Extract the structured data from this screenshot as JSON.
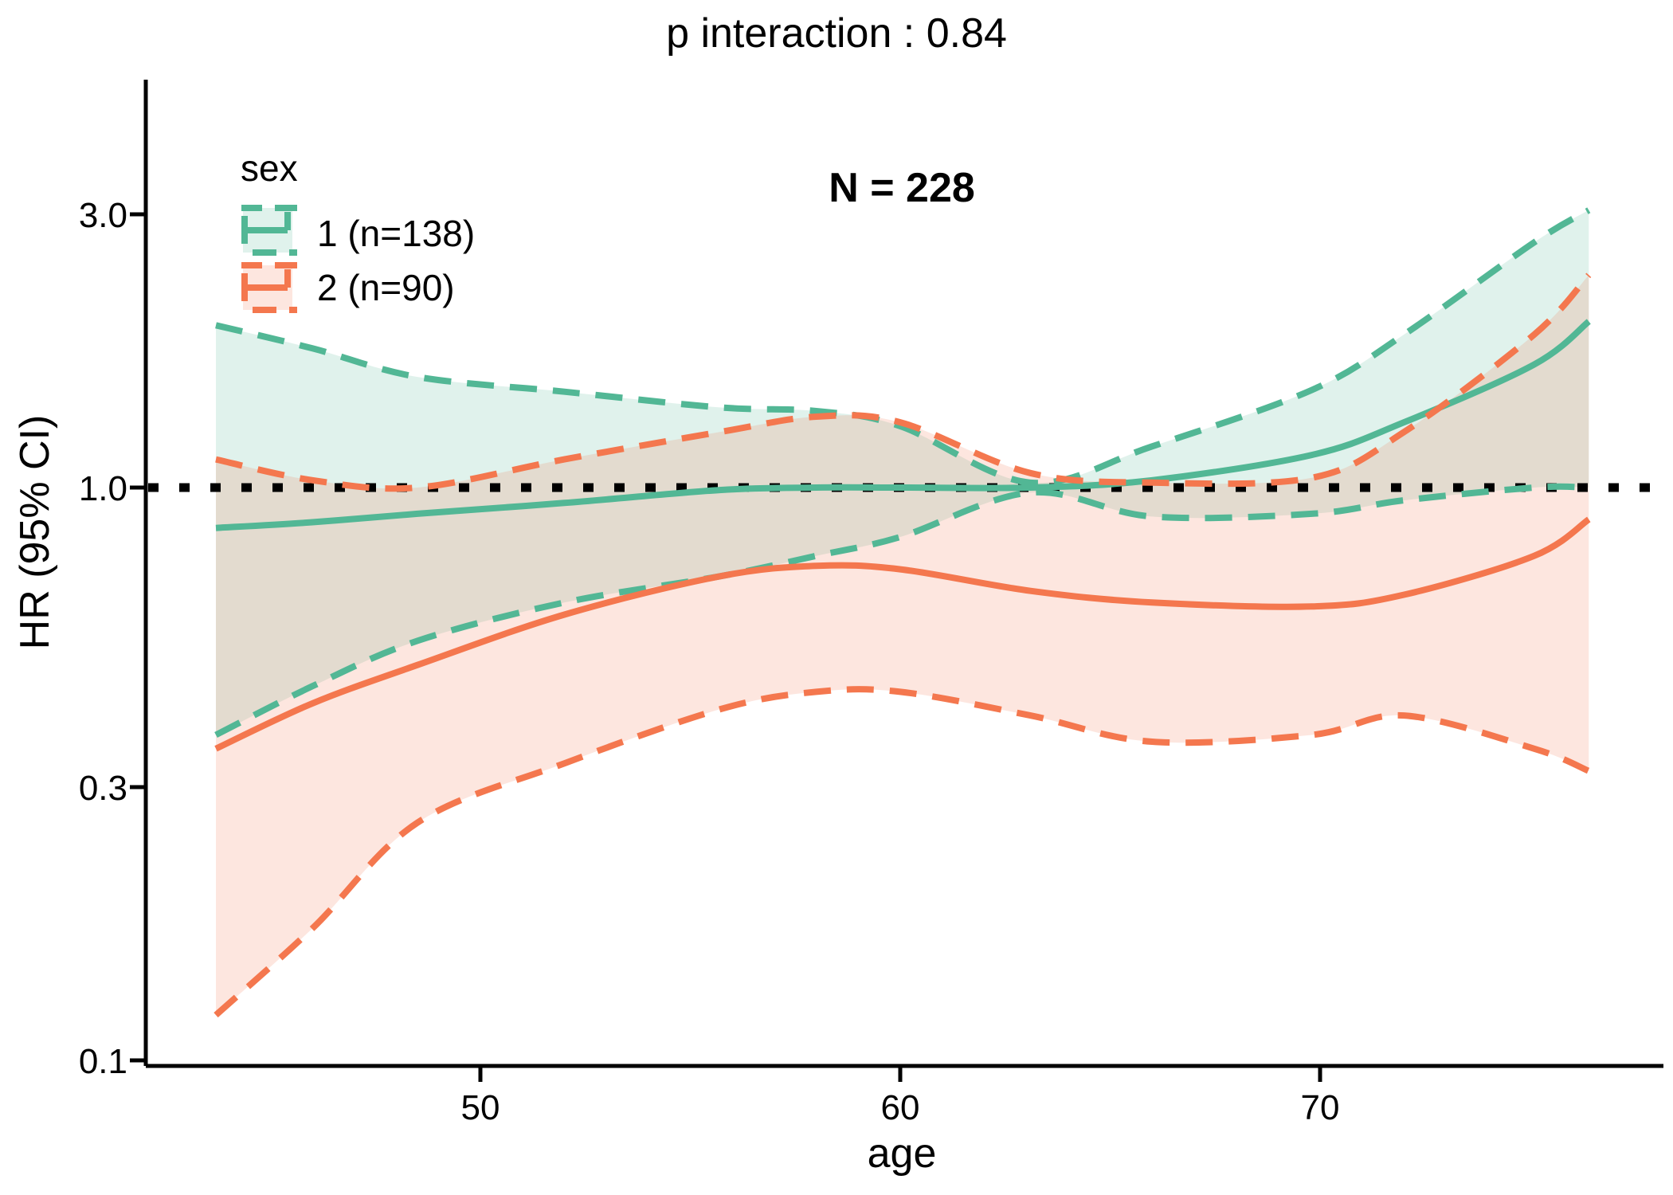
{
  "title": "p interaction : 0.84",
  "annotation": "N = 228",
  "legend": {
    "title": "sex",
    "items": [
      {
        "label": "1 (n=138)",
        "color": "#52b795"
      },
      {
        "label": "2 (n=90)",
        "color": "#f4774e"
      }
    ]
  },
  "axes": {
    "x": {
      "label": "age",
      "ticks": [
        "50",
        "60",
        "70"
      ],
      "tick_values": [
        50,
        60,
        70
      ],
      "range": [
        42.0,
        78.2
      ]
    },
    "y": {
      "label": "HR (95% CI)",
      "ticks": [
        "3.0",
        "1.0",
        "0.3",
        "0.1"
      ],
      "tick_values": [
        3.0,
        1.0,
        0.3,
        0.1
      ],
      "scale": "log",
      "range": [
        0.098,
        5.1
      ]
    }
  },
  "reference_line": {
    "y": 1.0,
    "style": "dotted",
    "color": "#000000"
  },
  "colors": {
    "sex1": "#52b795",
    "sex2": "#f4774e",
    "axis": "#000000"
  },
  "chart_data": {
    "type": "line",
    "title": "p interaction : 0.84",
    "subtitle": "N = 228",
    "xlabel": "age",
    "ylabel": "HR (95% CI)",
    "x_range": [
      43.7,
      76.4
    ],
    "y_scale": "log",
    "y_ticks": [
      3.0,
      1.0,
      0.3,
      0.1
    ],
    "grid": false,
    "legend_position": "top-left-inside",
    "reference_hline": 1.0,
    "x": [
      43.7,
      46,
      48.5,
      52,
      55.7,
      58,
      60,
      63.1,
      66,
      69.8,
      72,
      75.1,
      76.4
    ],
    "series": [
      {
        "name": "sex 1 HR estimate",
        "group": "1 (n=138)",
        "role": "estimate",
        "color": "#52b795",
        "style": "solid",
        "values": [
          0.85,
          0.87,
          0.9,
          0.94,
          0.99,
          1.0,
          1.0,
          1.0,
          1.03,
          1.14,
          1.3,
          1.64,
          1.95
        ]
      },
      {
        "name": "sex 1 upper 95% CI",
        "group": "1 (n=138)",
        "role": "ci_upper",
        "color": "#52b795",
        "style": "dashed",
        "values": [
          1.92,
          1.75,
          1.56,
          1.47,
          1.38,
          1.36,
          1.28,
          1.02,
          1.18,
          1.48,
          1.85,
          2.68,
          3.05
        ]
      },
      {
        "name": "sex 1 lower 95% CI",
        "group": "1 (n=138)",
        "role": "ci_lower",
        "color": "#52b795",
        "style": "dashed",
        "values": [
          0.37,
          0.45,
          0.54,
          0.63,
          0.7,
          0.76,
          0.82,
          0.98,
          0.89,
          0.9,
          0.95,
          1.0,
          1.0
        ]
      },
      {
        "name": "sex 2 HR estimate",
        "group": "2 (n=90)",
        "role": "estimate",
        "color": "#f4774e",
        "style": "solid",
        "values": [
          0.35,
          0.42,
          0.49,
          0.6,
          0.7,
          0.73,
          0.72,
          0.66,
          0.63,
          0.62,
          0.65,
          0.76,
          0.88
        ]
      },
      {
        "name": "sex 2 upper 95% CI",
        "group": "2 (n=90)",
        "role": "ci_upper",
        "color": "#f4774e",
        "style": "dashed",
        "values": [
          1.12,
          1.03,
          1.0,
          1.12,
          1.25,
          1.33,
          1.3,
          1.06,
          1.02,
          1.04,
          1.25,
          1.85,
          2.35
        ]
      },
      {
        "name": "sex 2 lower 95% CI",
        "group": "2 (n=90)",
        "role": "ci_lower",
        "color": "#f4774e",
        "style": "dashed",
        "values": [
          0.12,
          0.17,
          0.26,
          0.33,
          0.41,
          0.44,
          0.44,
          0.4,
          0.36,
          0.37,
          0.4,
          0.35,
          0.32
        ]
      }
    ]
  }
}
